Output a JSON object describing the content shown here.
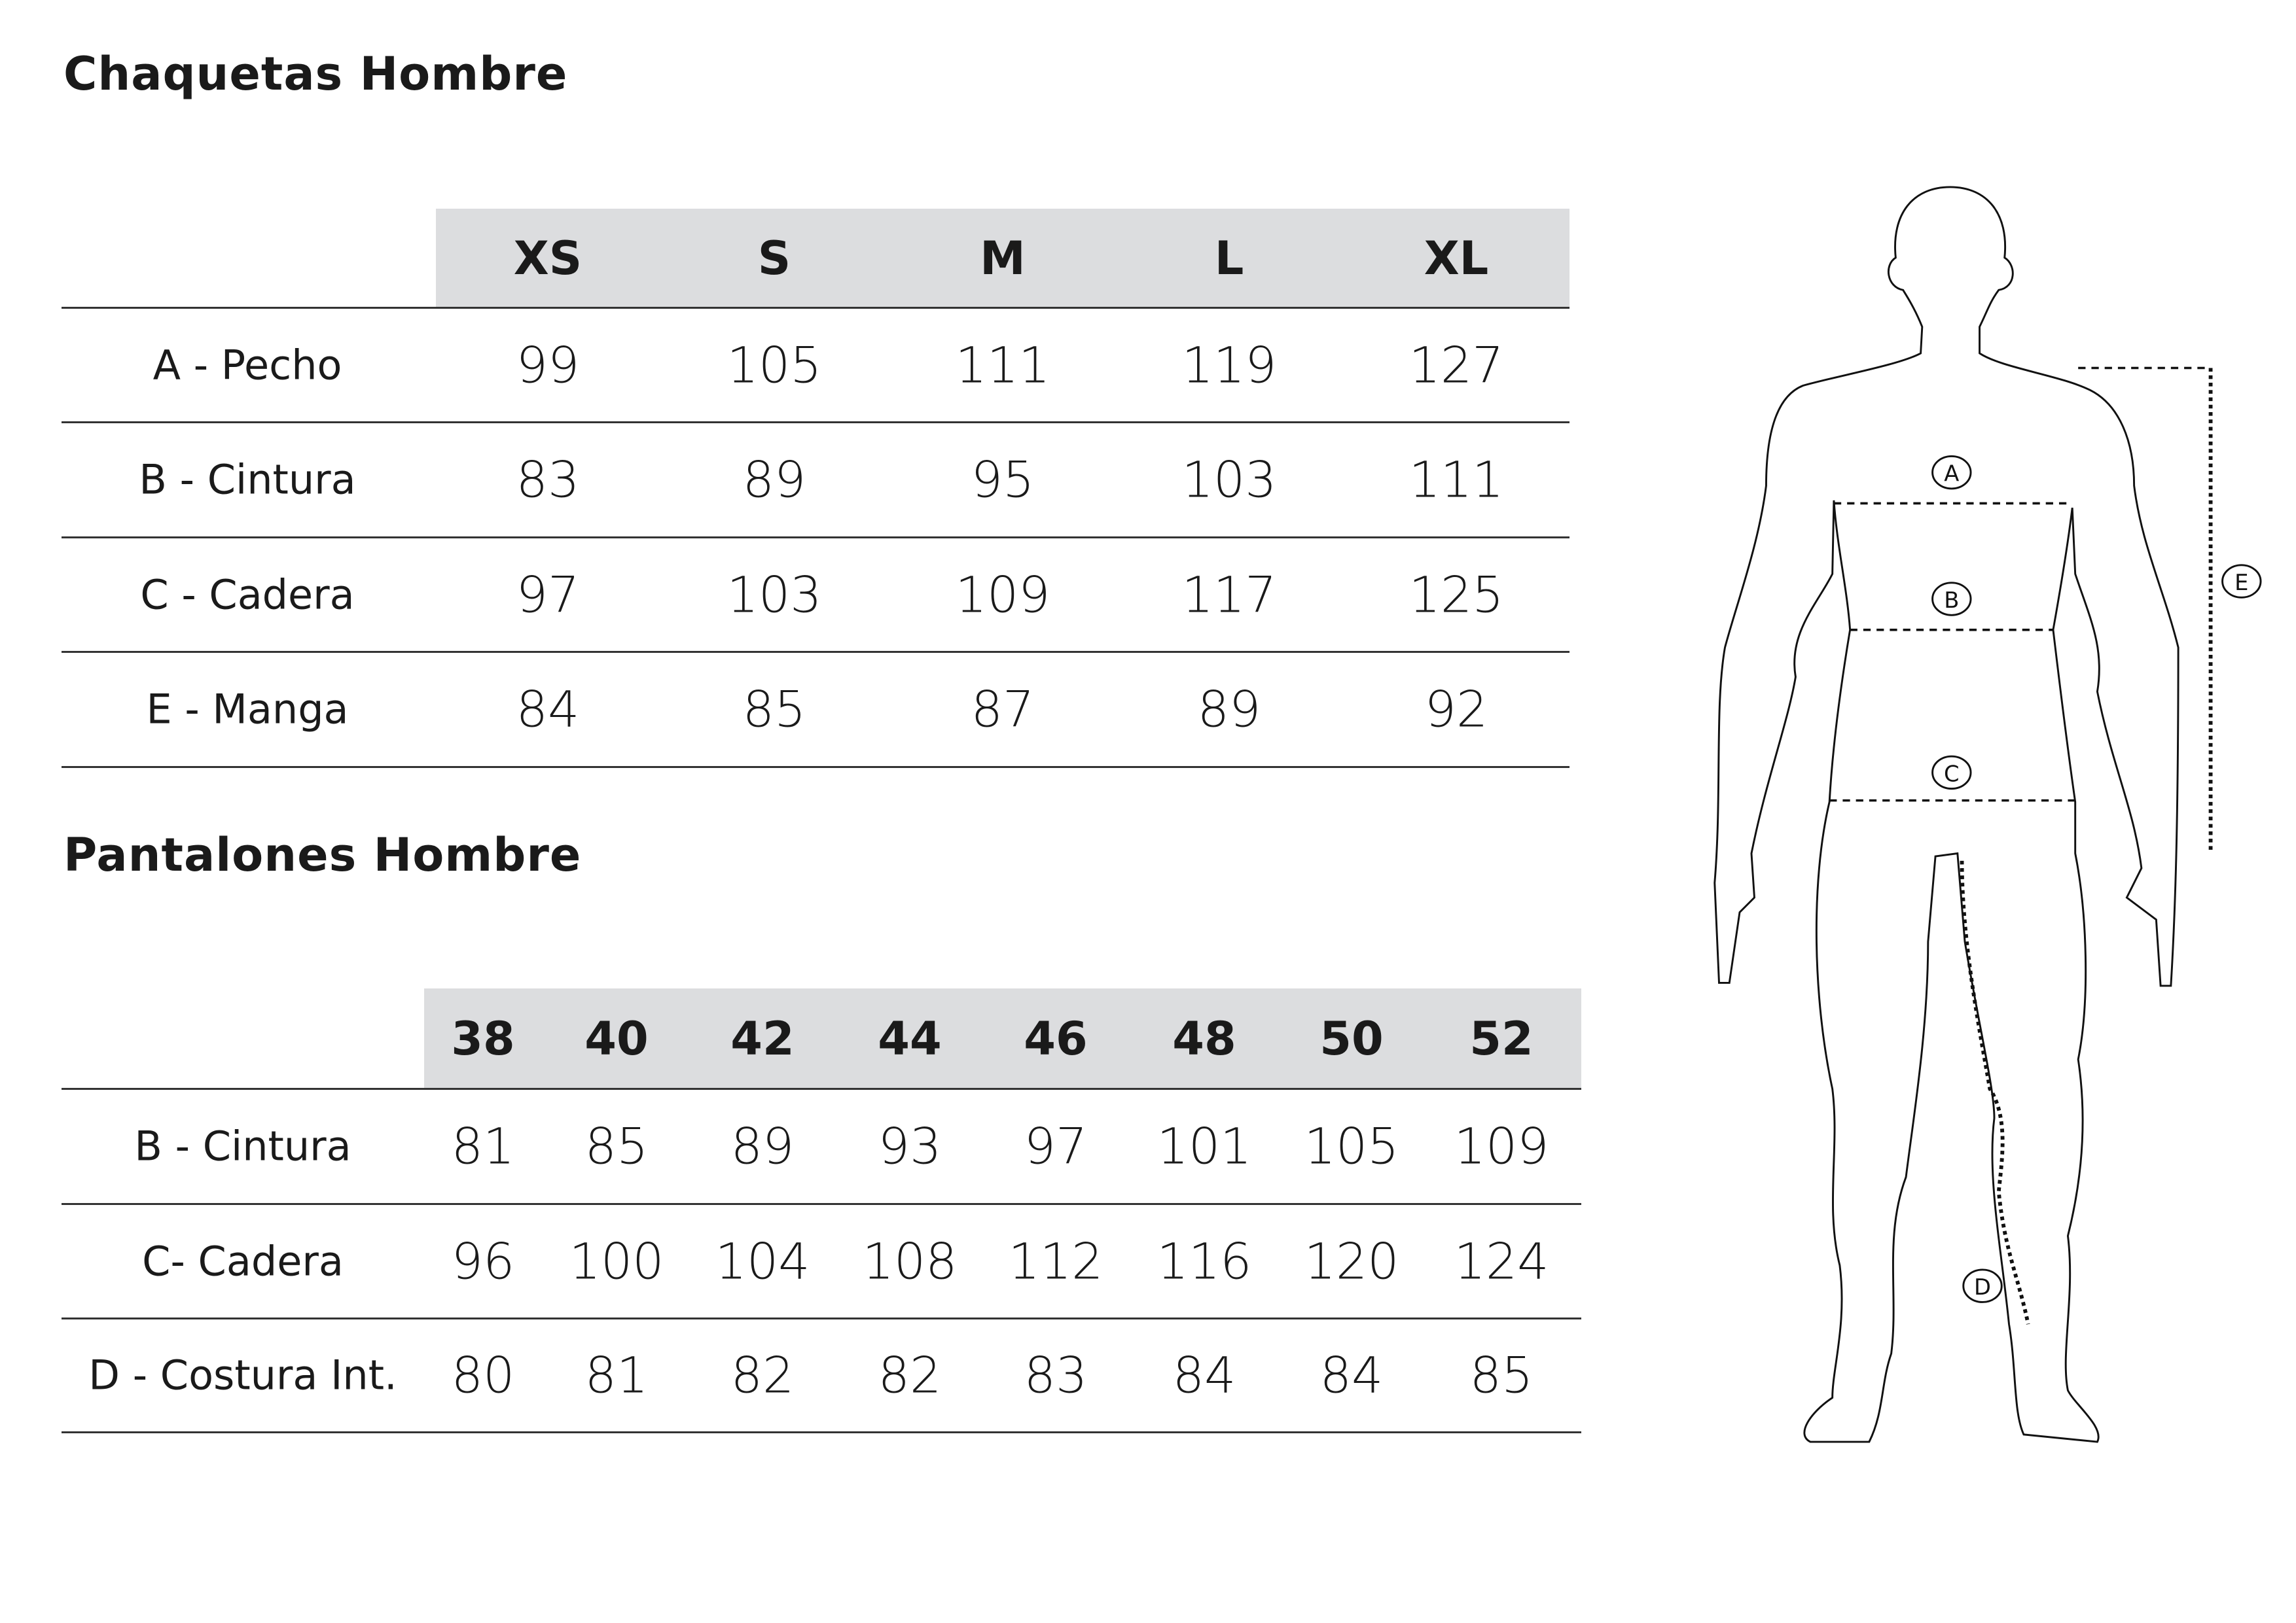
{
  "jackets": {
    "title": "Chaquetas Hombre",
    "sizes": [
      "XS",
      "S",
      "M",
      "L",
      "XL"
    ],
    "rows": [
      {
        "label": "A - Pecho",
        "values": [
          "99",
          "105",
          "111",
          "119",
          "127"
        ]
      },
      {
        "label": "B - Cintura",
        "values": [
          "83",
          "89",
          "95",
          "103",
          "111"
        ]
      },
      {
        "label": "C - Cadera",
        "values": [
          "97",
          "103",
          "109",
          "117",
          "125"
        ]
      },
      {
        "label": "E - Manga",
        "values": [
          "84",
          "85",
          "87",
          "89",
          "92"
        ]
      }
    ]
  },
  "pants": {
    "title": "Pantalones Hombre",
    "sizes": [
      "38",
      "40",
      "42",
      "44",
      "46",
      "48",
      "50",
      "52"
    ],
    "rows": [
      {
        "label": "B - Cintura",
        "values": [
          "81",
          "85",
          "89",
          "93",
          "97",
          "101",
          "105",
          "109"
        ]
      },
      {
        "label": "C- Cadera",
        "values": [
          "96",
          "100",
          "104",
          "108",
          "112",
          "116",
          "120",
          "124"
        ]
      },
      {
        "label": "D - Costura Int.",
        "values": [
          "80",
          "81",
          "82",
          "82",
          "83",
          "84",
          "84",
          "85"
        ]
      }
    ]
  },
  "figure": {
    "markers": {
      "A": "A",
      "B": "B",
      "C": "C",
      "D": "D",
      "E": "E"
    }
  },
  "colors": {
    "header_bg": "#dcdddf",
    "text": "#1a1a1a"
  }
}
